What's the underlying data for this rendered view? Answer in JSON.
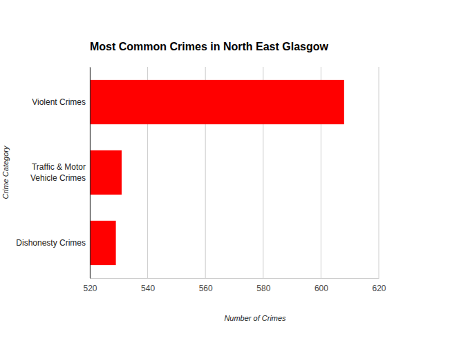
{
  "chart_data": {
    "type": "bar",
    "orientation": "horizontal",
    "title": "Most Common Crimes in North East Glasgow",
    "x_label": "Number of Crimes",
    "y_label": "Crime Category",
    "categories": [
      "Violent Crimes",
      "Traffic & Motor Vehicle Crimes",
      "Dishonesty Crimes"
    ],
    "values": [
      608,
      531,
      529
    ],
    "color": "#ff0000",
    "xlim": [
      520,
      620
    ],
    "xticks": [
      520,
      540,
      560,
      580,
      600,
      620
    ],
    "grid": true
  }
}
